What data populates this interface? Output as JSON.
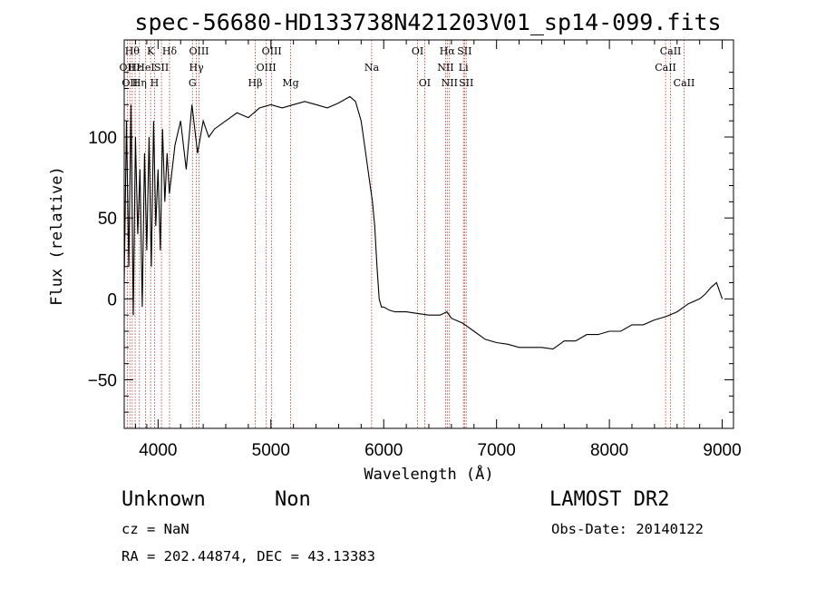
{
  "chart_data": {
    "type": "line",
    "title": "spec-56680-HD133738N421203V01_sp14-099.fits",
    "xlabel": "Wavelength (Å)",
    "ylabel": "Flux (relative)",
    "xlim": [
      3700,
      9100
    ],
    "ylim": [
      -80,
      160
    ],
    "xticks": [
      4000,
      5000,
      6000,
      7000,
      8000,
      9000
    ],
    "xtick_labels": [
      "4000",
      "5000",
      "6000",
      "7000",
      "8000",
      "9000"
    ],
    "yticks": [
      -50,
      0,
      50,
      100
    ],
    "ytick_labels": [
      "−50",
      "0",
      "50",
      "100"
    ],
    "grid": false,
    "legend": "none",
    "line_color": "#000000",
    "marker_color": "#b03030",
    "series": [
      {
        "x": [
          3700,
          3720,
          3740,
          3760,
          3780,
          3800,
          3820,
          3840,
          3860,
          3880,
          3900,
          3920,
          3940,
          3960,
          3980,
          4000,
          4020,
          4040,
          4060,
          4080,
          4100,
          4150,
          4200,
          4250,
          4300,
          4350,
          4400,
          4450,
          4500,
          4600,
          4700,
          4800,
          4900,
          5000,
          5100,
          5200,
          5300,
          5400,
          5500,
          5600,
          5700,
          5750,
          5800,
          5830,
          5860,
          5880,
          5900,
          5920,
          5940,
          5960,
          5980,
          6000,
          6050,
          6100,
          6200,
          6300,
          6400,
          6500,
          6560,
          6600,
          6700,
          6800,
          6900,
          7000,
          7100,
          7200,
          7300,
          7400,
          7500,
          7600,
          7700,
          7800,
          7900,
          8000,
          8100,
          8200,
          8300,
          8400,
          8500,
          8600,
          8700,
          8800,
          8850,
          8900,
          8950,
          9000
        ],
        "y": [
          10,
          110,
          20,
          120,
          -10,
          100,
          40,
          80,
          -5,
          90,
          30,
          100,
          20,
          110,
          45,
          80,
          30,
          105,
          60,
          90,
          65,
          95,
          110,
          80,
          120,
          90,
          110,
          100,
          105,
          110,
          115,
          112,
          118,
          120,
          118,
          120,
          122,
          120,
          118,
          121,
          125,
          122,
          110,
          95,
          80,
          70,
          60,
          45,
          20,
          0,
          -5,
          -5,
          -7,
          -8,
          -8,
          -9,
          -10,
          -10,
          -8,
          -12,
          -15,
          -20,
          -25,
          -27,
          -28,
          -30,
          -30,
          -30,
          -31,
          -26,
          -26,
          -22,
          -22,
          -20,
          -20,
          -16,
          -16,
          -13,
          -11,
          -8,
          -3,
          0,
          3,
          7,
          10,
          0
        ]
      }
    ],
    "spectral_lines": [
      {
        "wavelength": 3727,
        "label": "OII",
        "row": 2
      },
      {
        "wavelength": 3750,
        "label": "OII",
        "row": 3
      },
      {
        "wavelength": 3771,
        "label": "Hθ",
        "row": 1
      },
      {
        "wavelength": 3797,
        "label": "Hε",
        "row": 2
      },
      {
        "wavelength": 3835,
        "label": "Hη",
        "row": 3
      },
      {
        "wavelength": 3889,
        "label": "HeI",
        "row": 2
      },
      {
        "wavelength": 3934,
        "label": "K",
        "row": 1
      },
      {
        "wavelength": 3969,
        "label": "H",
        "row": 3
      },
      {
        "wavelength": 4030,
        "label": "SII",
        "row": 2
      },
      {
        "wavelength": 4102,
        "label": "Hδ",
        "row": 1
      },
      {
        "wavelength": 4305,
        "label": "G",
        "row": 3
      },
      {
        "wavelength": 4340,
        "label": "Hγ",
        "row": 2
      },
      {
        "wavelength": 4363,
        "label": "OIII",
        "row": 1
      },
      {
        "wavelength": 4861,
        "label": "Hβ",
        "row": 3
      },
      {
        "wavelength": 4959,
        "label": "OIII",
        "row": 2
      },
      {
        "wavelength": 5007,
        "label": "OIII",
        "row": 1
      },
      {
        "wavelength": 5175,
        "label": "Mg",
        "row": 3
      },
      {
        "wavelength": 5893,
        "label": "Na",
        "row": 2
      },
      {
        "wavelength": 6300,
        "label": "OI",
        "row": 1
      },
      {
        "wavelength": 6363,
        "label": "OI",
        "row": 3
      },
      {
        "wavelength": 6548,
        "label": "NII",
        "row": 2
      },
      {
        "wavelength": 6563,
        "label": "Hα",
        "row": 1
      },
      {
        "wavelength": 6583,
        "label": "NII",
        "row": 3
      },
      {
        "wavelength": 6707,
        "label": "Li",
        "row": 2
      },
      {
        "wavelength": 6716,
        "label": "SII",
        "row": 1
      },
      {
        "wavelength": 6731,
        "label": "SII",
        "row": 3
      },
      {
        "wavelength": 8498,
        "label": "CaII",
        "row": 2
      },
      {
        "wavelength": 8542,
        "label": "CaII",
        "row": 1
      },
      {
        "wavelength": 8662,
        "label": "CaII",
        "row": 3
      }
    ]
  },
  "info": {
    "class": "Unknown",
    "subclass": "Non",
    "survey": "LAMOST DR2",
    "cz": "cz = NaN",
    "obs_date": "Obs-Date: 20140122",
    "coords": "RA = 202.44874, DEC =  43.13383"
  }
}
